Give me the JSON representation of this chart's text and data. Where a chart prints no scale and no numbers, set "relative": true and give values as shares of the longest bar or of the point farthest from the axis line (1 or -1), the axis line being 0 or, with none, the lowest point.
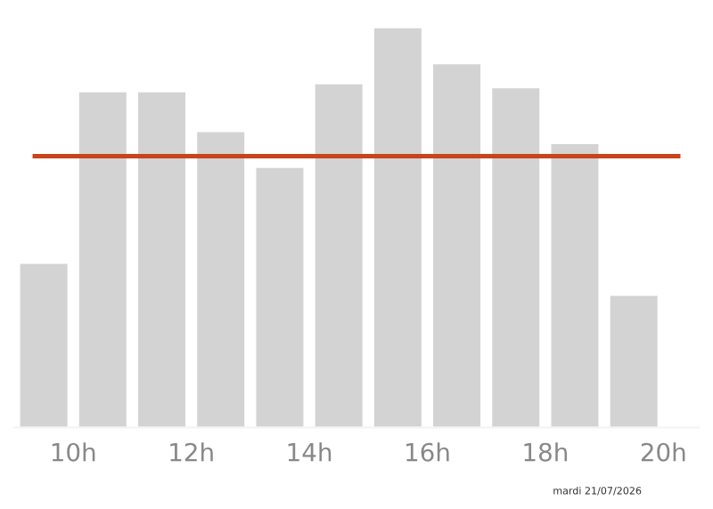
{
  "chart_data": {
    "type": "bar",
    "relative": true,
    "x": [
      9.5,
      10.5,
      11.5,
      12.5,
      13.5,
      14.5,
      15.5,
      16.5,
      17.5,
      18.5,
      19.5
    ],
    "values": [
      0.41,
      0.84,
      0.84,
      0.74,
      0.65,
      0.86,
      1,
      0.91,
      0.85,
      0.71,
      0.33
    ],
    "color": "#d3d3d3",
    "xlim": [
      9,
      20.6
    ],
    "xticks": [
      {
        "value": 10,
        "label": "10h"
      },
      {
        "value": 12,
        "label": "12h"
      },
      {
        "value": 14,
        "label": "14h"
      },
      {
        "value": 16,
        "label": "16h"
      },
      {
        "value": 18,
        "label": "18h"
      },
      {
        "value": 20,
        "label": "20h"
      }
    ],
    "ref_lines": [
      {
        "axis": "y",
        "value": 0.68,
        "color": "#c8441a"
      }
    ],
    "annotations": [
      "mardi 21/07/2026"
    ],
    "grid": false,
    "legend": false
  }
}
